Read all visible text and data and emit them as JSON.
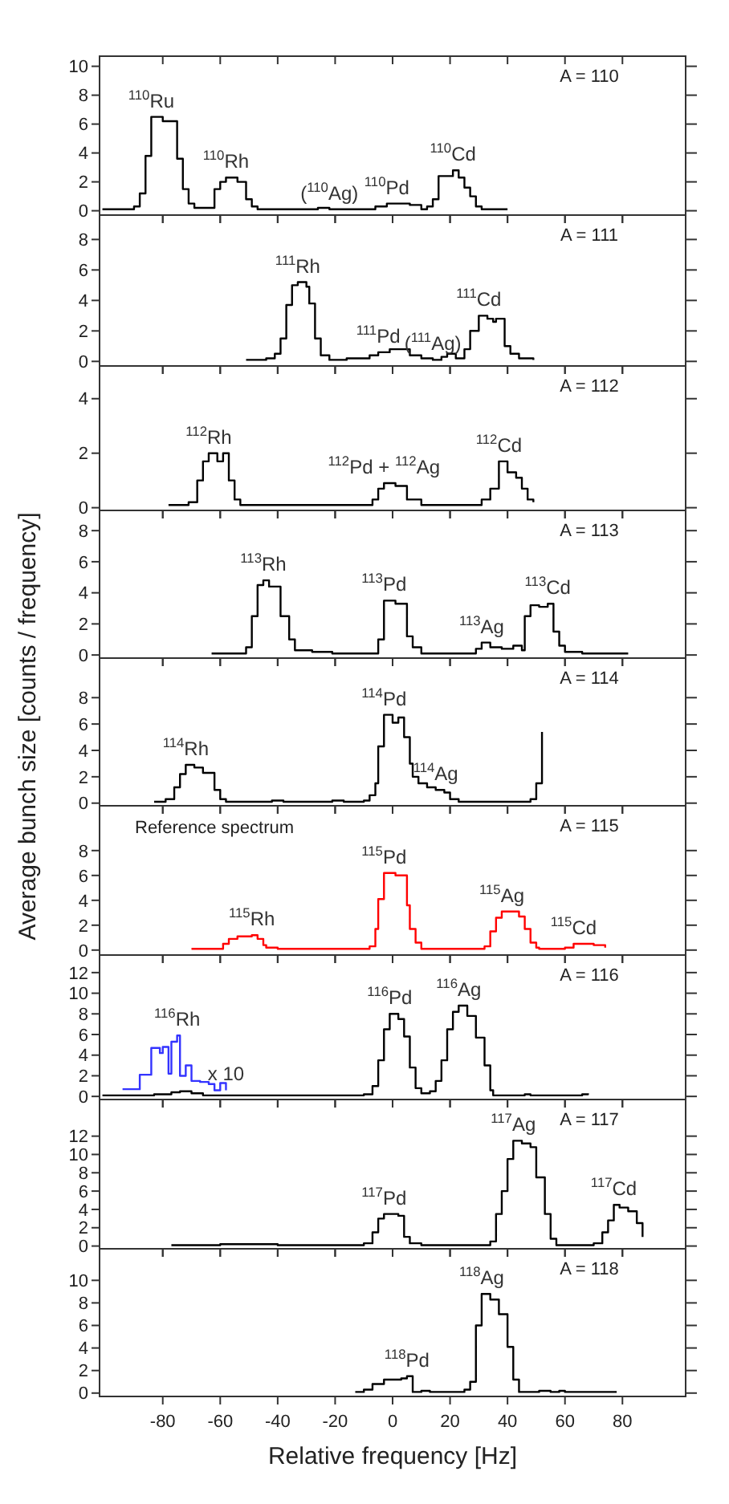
{
  "chart_data": [
    {
      "type": "step",
      "title": "A = 110",
      "xlim": [
        -102,
        102
      ],
      "xticks": [
        -80,
        -60,
        -40,
        -20,
        0,
        20,
        40,
        60,
        80
      ],
      "ylim": [
        -0.3,
        10.7
      ],
      "yticks": [
        0,
        2,
        4,
        6,
        8,
        10
      ],
      "tick_labels": "y",
      "series": [
        {
          "color": "#000000",
          "x": [
            -101,
            -90,
            -88,
            -86,
            -84,
            -80,
            -75,
            -73,
            -71,
            -69,
            -64,
            -62,
            -60,
            -58,
            -54,
            -51,
            -49,
            -47,
            -45,
            -40,
            -30,
            -26,
            -22,
            -18,
            -10,
            -6,
            -2,
            6,
            10,
            12,
            14,
            16,
            18,
            21,
            23,
            25,
            27,
            29,
            31,
            36,
            40
          ],
          "values": [
            0.1,
            0.3,
            1.2,
            3.8,
            6.5,
            6.2,
            3.6,
            1.5,
            0.5,
            0.2,
            0.2,
            1.5,
            2.0,
            2.3,
            2.0,
            0.8,
            0.3,
            0.1,
            0.1,
            0.1,
            0.1,
            0.2,
            0.1,
            0.1,
            0.1,
            0.3,
            0.5,
            0.4,
            0.1,
            0.3,
            0.8,
            2.4,
            2.4,
            2.8,
            2.3,
            1.6,
            1.0,
            0.3,
            0.1,
            0.1,
            0.1
          ]
        }
      ],
      "annotations": [
        {
          "text": "$^{110}$Ru",
          "x": -84,
          "y": 6.5
        },
        {
          "text": "$^{110}$Rh",
          "x": -58,
          "y": 2.3
        },
        {
          "text": "($^{110}$Ag)",
          "x": -22,
          "y": 0.1
        },
        {
          "text": "$^{110}$Pd",
          "x": -2,
          "y": 0.5
        },
        {
          "text": "$^{110}$Cd",
          "x": 21,
          "y": 2.8
        }
      ]
    },
    {
      "type": "step",
      "title": "A = 111",
      "xlim": [
        -102,
        102
      ],
      "xticks": [
        -80,
        -60,
        -40,
        -20,
        0,
        20,
        40,
        60,
        80
      ],
      "ylim": [
        -0.3,
        9.6
      ],
      "yticks": [
        0,
        2,
        4,
        6,
        8
      ],
      "tick_labels": "y",
      "series": [
        {
          "color": "#000000",
          "x": [
            -51,
            -44,
            -41,
            -39,
            -37,
            -35,
            -33,
            -30,
            -29,
            -27,
            -25,
            -22,
            -16,
            -8,
            -5,
            -1,
            6,
            10,
            14,
            17,
            19,
            22,
            25,
            27,
            30,
            33,
            35,
            36,
            39,
            41,
            44,
            49
          ],
          "values": [
            0.1,
            0.2,
            0.5,
            1.5,
            3.7,
            5.0,
            5.2,
            4.9,
            3.8,
            1.5,
            0.4,
            0.1,
            0.2,
            0.4,
            0.6,
            0.8,
            0.4,
            0.2,
            0.1,
            0.3,
            0.5,
            0.2,
            0.8,
            2.0,
            3.0,
            2.8,
            2.6,
            2.8,
            1.0,
            0.5,
            0.2,
            0.1
          ]
        }
      ],
      "annotations": [
        {
          "text": "$^{111}$Rh",
          "x": -33,
          "y": 5.2
        },
        {
          "text": "($^{111}$Ag)",
          "x": 14,
          "y": 0.1
        },
        {
          "text": "$^{111}$Pd",
          "x": -5,
          "y": 0.6
        },
        {
          "text": "$^{111}$Cd",
          "x": 30,
          "y": 3.0
        }
      ]
    },
    {
      "type": "step",
      "title": "A = 112",
      "xlim": [
        -102,
        102
      ],
      "xticks": [
        -80,
        -60,
        -40,
        -20,
        0,
        20,
        40,
        60,
        80
      ],
      "ylim": [
        -0.1,
        5.2
      ],
      "yticks": [
        0,
        2,
        4
      ],
      "tick_labels": "y",
      "series": [
        {
          "color": "#000000",
          "x": [
            -78,
            -75,
            -71,
            -68,
            -66,
            -64,
            -61,
            -59,
            -57,
            -55,
            -53,
            -44,
            -40,
            -35,
            -30,
            -26,
            -22,
            -7,
            -5,
            -3,
            1,
            5,
            10,
            19,
            24,
            31,
            34,
            37,
            40,
            43,
            45,
            47,
            49
          ],
          "values": [
            0.1,
            0.1,
            0.2,
            1.0,
            1.7,
            2.0,
            1.7,
            2.0,
            1.0,
            0.3,
            0.1,
            0.1,
            0.1,
            0.1,
            0.1,
            0.1,
            0.1,
            0.3,
            0.7,
            0.9,
            0.8,
            0.3,
            0.1,
            0.1,
            0.1,
            0.3,
            0.7,
            1.7,
            1.3,
            1.1,
            0.7,
            0.3,
            0.2
          ]
        }
      ],
      "annotations": [
        {
          "text": "$^{112}$Rh",
          "x": -64,
          "y": 2.0
        },
        {
          "text": "$^{112}$Pd + $^{112}$Ag",
          "x": -3,
          "y": 0.9
        },
        {
          "text": "$^{112}$Cd",
          "x": 37,
          "y": 1.7
        }
      ]
    },
    {
      "type": "step",
      "title": "A = 113",
      "xlim": [
        -102,
        102
      ],
      "xticks": [
        -80,
        -60,
        -40,
        -20,
        0,
        20,
        40,
        60,
        80
      ],
      "ylim": [
        -0.2,
        9.3
      ],
      "yticks": [
        0,
        2,
        4,
        6,
        8
      ],
      "tick_labels": "y",
      "series": [
        {
          "color": "#000000",
          "x": [
            -63,
            -51,
            -49,
            -47,
            -45,
            -43,
            -39,
            -36,
            -34,
            -28,
            -21,
            -10,
            -5,
            -3,
            1,
            5,
            7,
            10,
            22,
            29,
            31,
            34,
            38,
            42,
            45,
            46,
            48,
            51,
            54,
            56,
            58,
            60,
            66,
            82
          ],
          "values": [
            0.1,
            0.5,
            2.5,
            4.5,
            4.8,
            4.4,
            2.5,
            1.0,
            0.3,
            0.2,
            0.1,
            0.1,
            1.0,
            3.5,
            3.3,
            1.2,
            0.5,
            0.1,
            0.1,
            0.4,
            0.8,
            0.5,
            0.4,
            0.6,
            0.3,
            2.5,
            3.2,
            3.1,
            3.3,
            1.5,
            0.6,
            0.2,
            0.1,
            0.1
          ]
        }
      ],
      "annotations": [
        {
          "text": "$^{113}$Rh",
          "x": -45,
          "y": 4.8
        },
        {
          "text": "$^{113}$Pd",
          "x": -3,
          "y": 3.5
        },
        {
          "text": "$^{113}$Ag",
          "x": 31,
          "y": 0.8
        },
        {
          "text": "$^{113}$Cd",
          "x": 54,
          "y": 3.3
        }
      ]
    },
    {
      "type": "step",
      "title": "A = 114",
      "ylabel": "Average bunch size [counts / frequency]",
      "xlim": [
        -102,
        102
      ],
      "xticks": [
        -80,
        -60,
        -40,
        -20,
        0,
        20,
        40,
        60,
        80
      ],
      "ylim": [
        -0.2,
        11
      ],
      "yticks": [
        0,
        2,
        4,
        6,
        8
      ],
      "tick_labels": "y",
      "series": [
        {
          "color": "#000000",
          "x": [
            -83,
            -79,
            -76,
            -74,
            -72,
            -69,
            -66,
            -62,
            -60,
            -58,
            -50,
            -42,
            -38,
            -21,
            -17,
            -10,
            -8,
            -6,
            -5,
            -3,
            0,
            2,
            4,
            6,
            7,
            9,
            12,
            15,
            18,
            20,
            23,
            30,
            48,
            50,
            52
          ],
          "values": [
            0.1,
            0.3,
            1.2,
            2.2,
            2.9,
            2.7,
            2.3,
            1.0,
            0.3,
            0.1,
            0.1,
            0.2,
            0.1,
            0.2,
            0.1,
            0.2,
            0.6,
            1.5,
            4.3,
            6.7,
            6.1,
            6.5,
            5.0,
            3.0,
            2.0,
            1.5,
            1.2,
            1.0,
            0.8,
            0.3,
            0.1,
            0.1,
            0.3,
            1.5,
            5.4
          ]
        }
      ],
      "annotations": [
        {
          "text": "$^{114}$Rh",
          "x": -72,
          "y": 2.9
        },
        {
          "text": "$^{114}$Pd",
          "x": -3,
          "y": 6.7
        },
        {
          "text": "$^{114}$Ag",
          "x": 15,
          "y": 1.0
        }
      ]
    },
    {
      "type": "step",
      "title": "A = 115",
      "subtitle": "Reference spectrum",
      "xlim": [
        -102,
        102
      ],
      "xticks": [
        -80,
        -60,
        -40,
        -20,
        0,
        20,
        40,
        60,
        80
      ],
      "ylim": [
        -0.4,
        11.6
      ],
      "yticks": [
        0,
        2,
        4,
        6,
        8
      ],
      "tick_labels": "y",
      "series": [
        {
          "color": "#ff0000",
          "x": [
            -70,
            -66,
            -59,
            -57,
            -54,
            -49,
            -47,
            -45,
            -44,
            -40,
            -8,
            -6,
            -5,
            -3,
            1,
            5,
            6,
            8,
            10,
            32,
            34,
            36,
            38,
            44,
            46,
            48,
            50,
            51,
            60,
            63,
            70,
            74
          ],
          "values": [
            0.1,
            0.1,
            0.5,
            0.9,
            1.1,
            1.2,
            0.9,
            0.4,
            0.2,
            0.1,
            0.3,
            1.7,
            4.1,
            6.2,
            6.0,
            3.6,
            1.7,
            0.6,
            0.1,
            0.3,
            1.5,
            2.6,
            3.1,
            2.7,
            1.7,
            0.6,
            0.2,
            0.1,
            0.2,
            0.5,
            0.4,
            0.2
          ]
        }
      ],
      "annotations": [
        {
          "text": "$^{115}$Rh",
          "x": -49,
          "y": 1.2
        },
        {
          "text": "$^{115}$Pd",
          "x": -3,
          "y": 6.2
        },
        {
          "text": "$^{115}$Ag",
          "x": 38,
          "y": 3.1
        },
        {
          "text": "$^{115}$Cd",
          "x": 63,
          "y": 0.5
        }
      ]
    },
    {
      "type": "step",
      "title": "A = 116",
      "xlim": [
        -102,
        102
      ],
      "xticks": [
        -80,
        -60,
        -40,
        -20,
        0,
        20,
        40,
        60,
        80
      ],
      "ylim": [
        -0.3,
        13.7
      ],
      "yticks": [
        0,
        2,
        4,
        6,
        8,
        10,
        12
      ],
      "tick_labels": "y",
      "series": [
        {
          "color": "#000000",
          "x": [
            -101,
            -83,
            -77,
            -74,
            -70,
            -66,
            -59,
            -10,
            -7,
            -5,
            -3,
            -1,
            2,
            4,
            6,
            8,
            10,
            13,
            15,
            17,
            19,
            21,
            23,
            26,
            29,
            32,
            34,
            35,
            46,
            48,
            66,
            68
          ],
          "values": [
            0.1,
            0.2,
            0.4,
            0.5,
            0.3,
            0.1,
            0.1,
            0.2,
            1.0,
            3.5,
            6.5,
            8.0,
            7.5,
            5.8,
            2.8,
            0.8,
            0.3,
            0.5,
            1.5,
            3.5,
            6.5,
            8.2,
            8.8,
            7.8,
            5.7,
            3.0,
            0.6,
            0.1,
            0.2,
            0.1,
            0.2,
            0.3
          ]
        },
        {
          "color": "#3333ff",
          "x": [
            -94,
            -91,
            -88,
            -84,
            -81,
            -80,
            -78,
            -77,
            -75,
            -74,
            -72,
            -70,
            -67,
            -64,
            -62,
            -60,
            -58
          ],
          "values": [
            0.7,
            0.7,
            2.1,
            4.7,
            4.2,
            4.8,
            2.2,
            5.3,
            5.9,
            2.0,
            3.0,
            1.5,
            1.4,
            1.2,
            0.6,
            1.3,
            0.6
          ]
        }
      ],
      "annotations": [
        {
          "text": "$^{116}$Rh",
          "x": -75,
          "y": 5.9
        },
        {
          "text": "$^{116}$Pd",
          "x": -1,
          "y": 8.0
        },
        {
          "text": "$^{116}$Ag",
          "x": 23,
          "y": 8.8
        },
        {
          "text": "x 10",
          "x": -58,
          "y": 0.6
        }
      ]
    },
    {
      "type": "step",
      "title": "A = 117",
      "xlim": [
        -102,
        102
      ],
      "xticks": [
        -80,
        -60,
        -40,
        -20,
        0,
        20,
        40,
        60,
        80
      ],
      "ylim": [
        -0.3,
        16
      ],
      "yticks": [
        0,
        2,
        4,
        6,
        8,
        10,
        12
      ],
      "tick_labels": "y",
      "series": [
        {
          "color": "#000000",
          "x": [
            -77,
            -60,
            -40,
            -10,
            -7,
            -5,
            -3,
            2,
            4,
            6,
            10,
            34,
            36,
            38,
            40,
            42,
            45,
            48,
            50,
            53,
            55,
            57,
            60,
            70,
            73,
            75,
            77,
            79,
            82,
            85,
            87
          ],
          "values": [
            0.1,
            0.2,
            0.1,
            0.3,
            1.5,
            3.0,
            3.5,
            3.3,
            1.0,
            0.3,
            0.1,
            0.5,
            3.5,
            6.0,
            9.5,
            11.5,
            11.2,
            10.8,
            7.5,
            3.5,
            0.8,
            0.1,
            0.1,
            0.3,
            1.5,
            2.8,
            4.5,
            4.2,
            3.8,
            2.5,
            1.0
          ]
        }
      ],
      "annotations": [
        {
          "text": "$^{117}$Ag",
          "x": 42,
          "y": 11.5
        },
        {
          "text": "$^{117}$Pd",
          "x": -3,
          "y": 3.5
        },
        {
          "text": "$^{117}$Cd",
          "x": 77,
          "y": 4.5
        }
      ]
    },
    {
      "type": "step",
      "title": "A = 118",
      "xlabel": "Relative frequency [Hz]",
      "xlim": [
        -102,
        102
      ],
      "xticks": [
        -80,
        -60,
        -40,
        -20,
        0,
        20,
        40,
        60,
        80
      ],
      "ylim": [
        -0.3,
        12.8
      ],
      "yticks": [
        0,
        2,
        4,
        6,
        8,
        10
      ],
      "series": [
        {
          "color": "#000000",
          "x": [
            -13,
            -10,
            -7,
            -3,
            3,
            5,
            7,
            10,
            13,
            25,
            27,
            29,
            31,
            34,
            37,
            40,
            42,
            44,
            51,
            55,
            58,
            60,
            75,
            78
          ],
          "values": [
            0.1,
            0.3,
            0.8,
            1.2,
            1.3,
            1.5,
            0.1,
            0.2,
            0.1,
            0.3,
            1.0,
            6.0,
            8.8,
            8.3,
            7.0,
            4.1,
            1.2,
            0.1,
            0.2,
            0.1,
            0.2,
            0.1,
            0.1,
            0.1
          ]
        }
      ],
      "annotations": [
        {
          "text": "$^{118}$Ag",
          "x": 31,
          "y": 8.8
        },
        {
          "text": "$^{118}$Pd",
          "x": 5,
          "y": 1.5
        }
      ]
    }
  ]
}
